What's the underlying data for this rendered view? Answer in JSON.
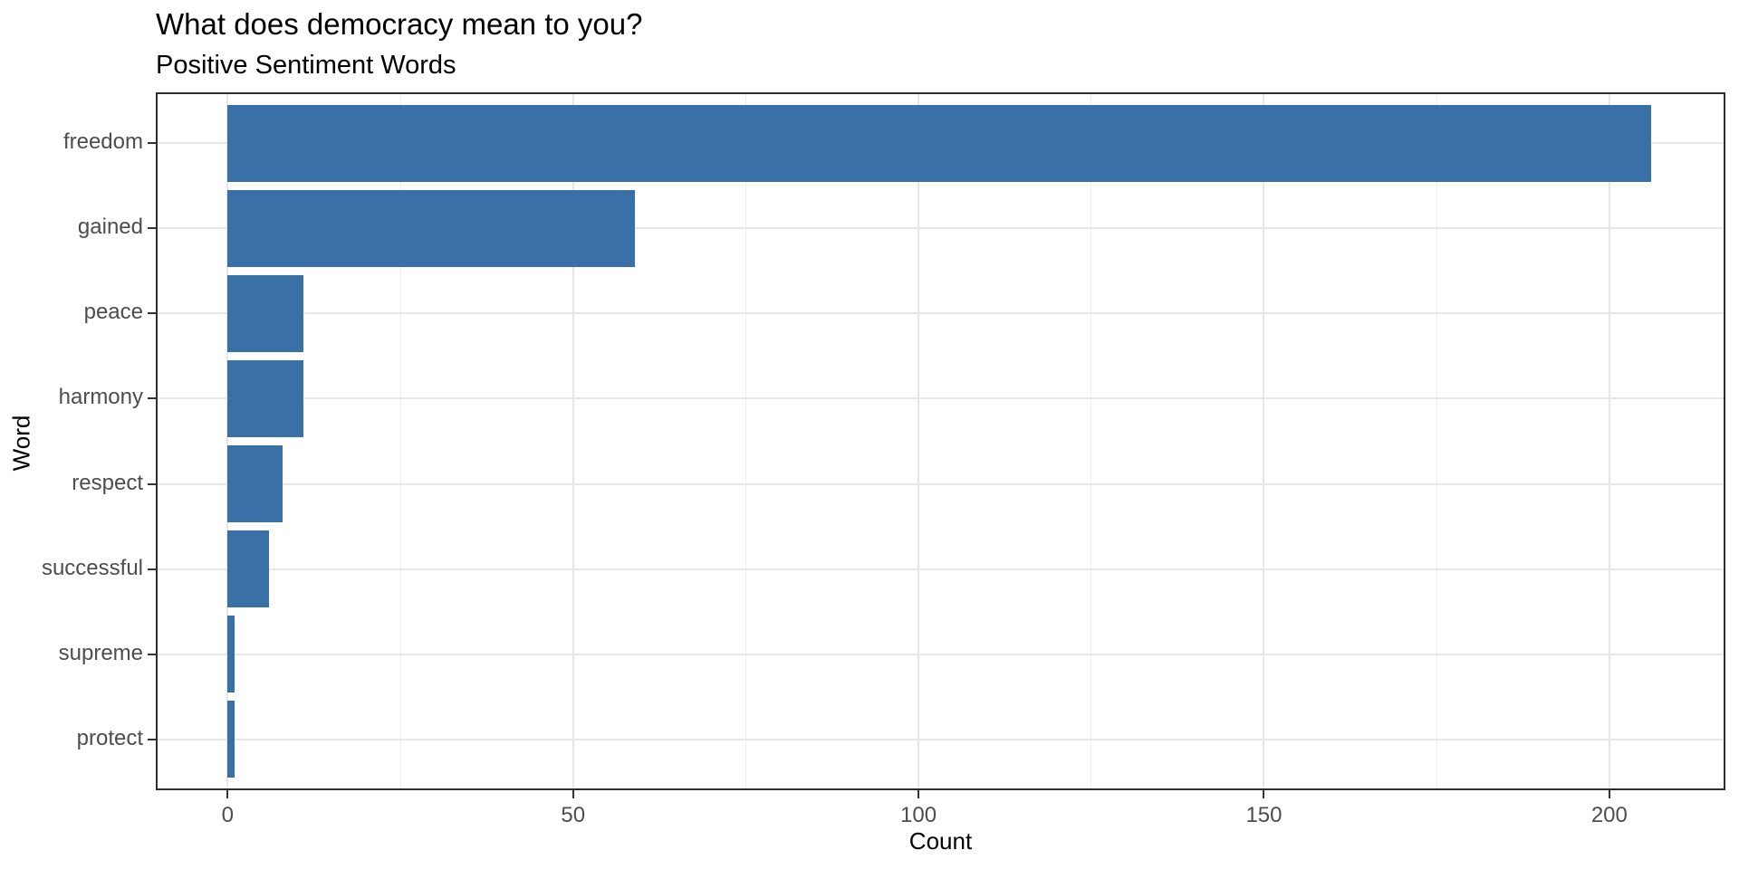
{
  "chart_data": {
    "type": "bar",
    "orientation": "horizontal",
    "title": "What does democracy mean to you?",
    "subtitle": "Positive Sentiment Words",
    "xlabel": "Count",
    "ylabel": "Word",
    "categories": [
      "freedom",
      "gained",
      "peace",
      "harmony",
      "respect",
      "successful",
      "supreme",
      "protect"
    ],
    "values": [
      206,
      59,
      11,
      11,
      8,
      6,
      1,
      1
    ],
    "x_ticks": [
      0,
      50,
      100,
      150,
      200
    ],
    "x_minor_ticks": [
      25,
      75,
      125,
      175
    ],
    "xlim": [
      -10.4,
      216.8
    ],
    "bar_relative_width": 0.9,
    "grid": "major-and-minor-vertical, major-horizontal",
    "legend": "none",
    "colors": {
      "bar": "#3A70A8",
      "grid_major": "#E7E7E7",
      "grid_minor": "#EFEFEF",
      "panel_border": "#2E2E2E",
      "tick_mark": "#333333",
      "tick_label": "#4D4D4D",
      "text": "#000000",
      "background": "#FFFFFF"
    }
  }
}
